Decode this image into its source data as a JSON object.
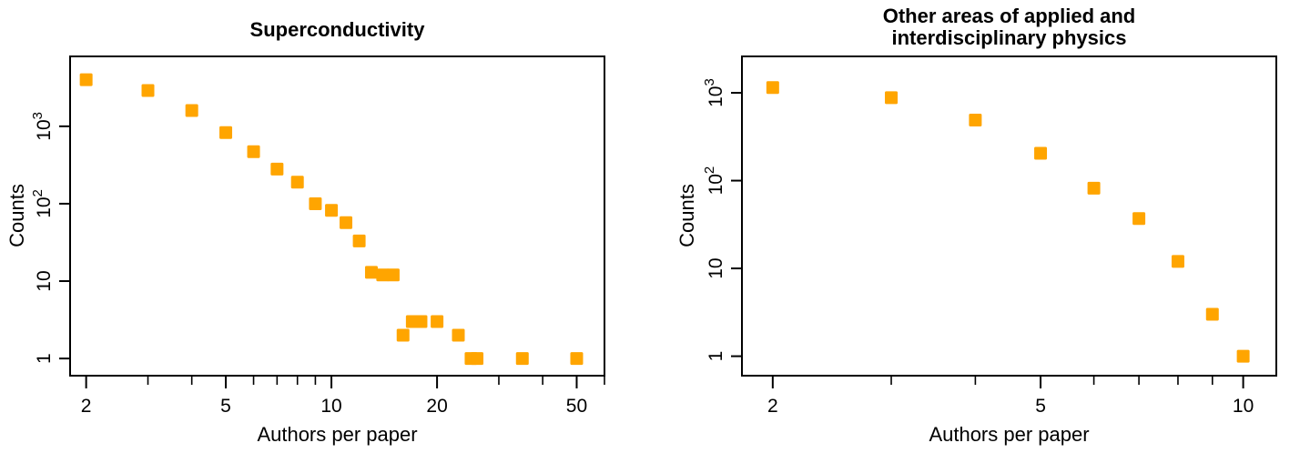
{
  "chart_data": [
    {
      "type": "scatter",
      "title_lines": [
        "Superconductivity"
      ],
      "xlabel": "Authors per paper",
      "ylabel": "Counts",
      "x_scale": "log",
      "y_scale": "log",
      "xlim": [
        1.8,
        60
      ],
      "ylim": [
        0.6,
        8000
      ],
      "x_ticks": [
        2,
        3,
        4,
        5,
        6,
        7,
        8,
        9,
        10,
        20,
        30,
        40,
        50,
        60
      ],
      "x_tick_labels": [
        {
          "value": 2,
          "text": "2"
        },
        {
          "value": 5,
          "text": "5"
        },
        {
          "value": 10,
          "text": "10"
        },
        {
          "value": 20,
          "text": "20"
        },
        {
          "value": 50,
          "text": "50"
        }
      ],
      "y_tick_labels": [
        {
          "value": 1,
          "base": "1"
        },
        {
          "value": 10,
          "base": "10"
        },
        {
          "value": 100,
          "base": "10",
          "exp": "2"
        },
        {
          "value": 1000,
          "base": "10",
          "exp": "3"
        }
      ],
      "marker": "square",
      "color": "#FFA500",
      "grid": false,
      "series": [
        {
          "x": [
            2,
            3,
            4,
            5,
            6,
            7,
            8,
            9,
            10,
            11,
            12,
            13,
            14,
            15,
            16,
            17,
            18,
            20,
            23,
            25,
            26,
            35,
            50
          ],
          "y": [
            4000,
            2900,
            1600,
            830,
            470,
            280,
            190,
            100,
            82,
            57,
            33,
            13,
            12,
            12,
            2,
            3,
            3,
            3,
            2,
            1,
            1,
            1,
            1
          ]
        }
      ]
    },
    {
      "type": "scatter",
      "title_lines": [
        "Other areas of applied and",
        "interdisciplinary physics"
      ],
      "xlabel": "Authors per paper",
      "ylabel": "Counts",
      "x_scale": "log",
      "y_scale": "log",
      "xlim": [
        1.8,
        11.2
      ],
      "ylim": [
        0.6,
        2600
      ],
      "x_ticks": [
        2,
        3,
        4,
        5,
        6,
        7,
        8,
        9,
        10
      ],
      "x_tick_labels": [
        {
          "value": 2,
          "text": "2"
        },
        {
          "value": 5,
          "text": "5"
        },
        {
          "value": 10,
          "text": "10"
        }
      ],
      "y_tick_labels": [
        {
          "value": 1,
          "base": "1"
        },
        {
          "value": 10,
          "base": "10"
        },
        {
          "value": 100,
          "base": "10",
          "exp": "2"
        },
        {
          "value": 1000,
          "base": "10",
          "exp": "3"
        }
      ],
      "marker": "square",
      "color": "#FFA500",
      "grid": false,
      "series": [
        {
          "x": [
            2,
            3,
            4,
            5,
            6,
            7,
            8,
            9,
            10
          ],
          "y": [
            1150,
            880,
            490,
            205,
            82,
            37,
            12,
            3,
            1
          ]
        }
      ]
    }
  ]
}
